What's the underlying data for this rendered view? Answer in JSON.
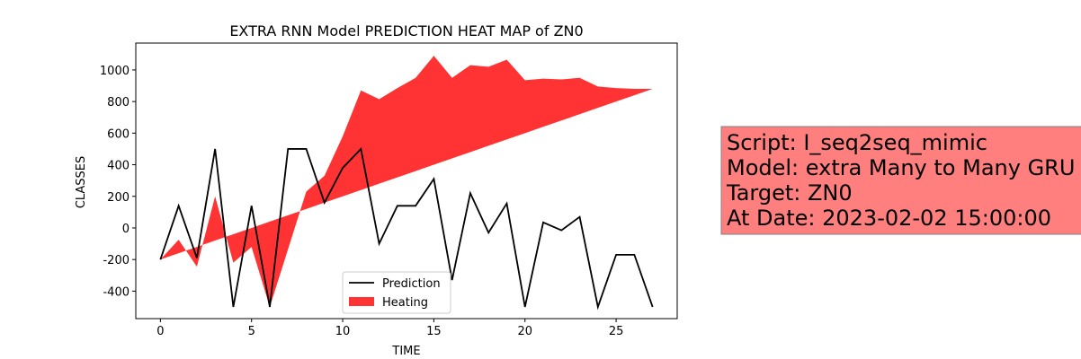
{
  "chart_data": {
    "type": "line",
    "title": "EXTRA RNN Model PREDICTION HEAT MAP of ZN0",
    "x_label": "TIME",
    "y_label": "CLASSES",
    "x": [
      0,
      1,
      2,
      3,
      4,
      5,
      6,
      7,
      8,
      9,
      10,
      11,
      12,
      13,
      14,
      15,
      16,
      17,
      18,
      19,
      20,
      21,
      22,
      23,
      24,
      25,
      26,
      27
    ],
    "series": [
      {
        "name": "Prediction",
        "kind": "line",
        "color": "#000000",
        "values": [
          -200,
          140,
          -190,
          500,
          -500,
          140,
          -500,
          500,
          500,
          160,
          380,
          500,
          -100,
          140,
          140,
          310,
          -330,
          220,
          -30,
          155,
          -500,
          35,
          -15,
          70,
          -500,
          -170,
          -170,
          -500
        ]
      },
      {
        "name": "Heating",
        "kind": "fill_between",
        "color": "#ff3333",
        "values": [
          -200,
          -75,
          -245,
          200,
          -220,
          -120,
          -500,
          -135,
          230,
          330,
          580,
          870,
          815,
          885,
          950,
          1090,
          950,
          1030,
          1020,
          1065,
          935,
          945,
          940,
          950,
          895,
          885,
          880,
          880
        ],
        "values2": [
          -200,
          -160,
          -120,
          -80,
          -40,
          0,
          40,
          80,
          120,
          160,
          200,
          240,
          280,
          320,
          360,
          400,
          440,
          480,
          520,
          560,
          600,
          640,
          680,
          720,
          760,
          800,
          840,
          880
        ]
      }
    ],
    "xlim": [
      -1.35,
      28.35
    ],
    "xticks": [
      0,
      5,
      10,
      15,
      20,
      25
    ],
    "ylim": [
      -574,
      1170
    ],
    "yticks": [
      -400,
      -200,
      0,
      200,
      400,
      600,
      800,
      1000
    ],
    "legend": "lower center",
    "annotation": {
      "lines": [
        "Script: I_seq2seq_mimic",
        "Model: extra Many to Many GRU",
        "Target: ZN0",
        "At Date: 2023-02-02 15:00:00"
      ],
      "color": "#ff7f7f"
    }
  }
}
